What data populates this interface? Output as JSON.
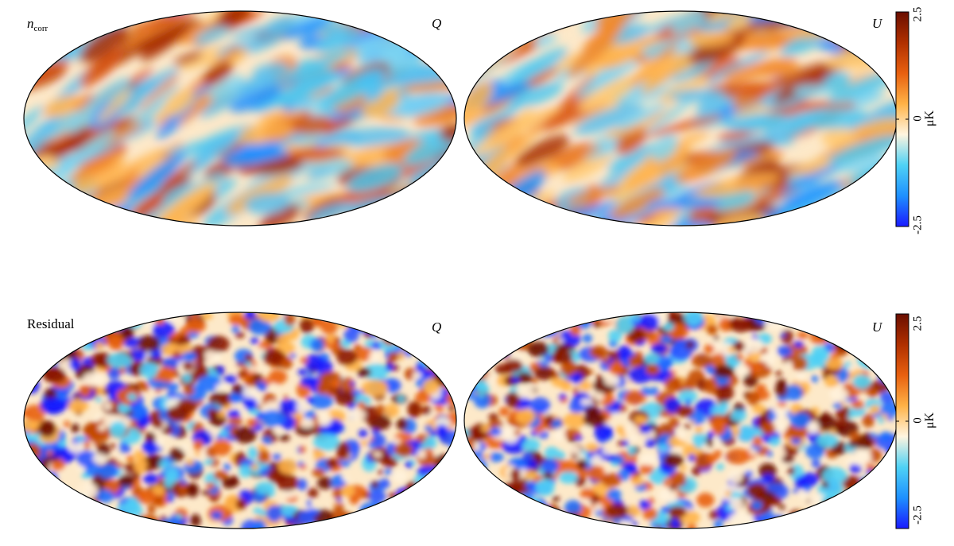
{
  "rows": [
    {
      "row_label_italic": "n",
      "row_label_sub": "corr",
      "row_label_plain": "",
      "maps": [
        {
          "stokes": "Q"
        },
        {
          "stokes": "U"
        }
      ],
      "colorbar": {
        "max": "2.5",
        "mid": "0",
        "min": "-2.5",
        "unit": "μK"
      }
    },
    {
      "row_label_italic": "",
      "row_label_sub": "",
      "row_label_plain": "Residual",
      "maps": [
        {
          "stokes": "Q"
        },
        {
          "stokes": "U"
        }
      ],
      "colorbar": {
        "max": "2.5",
        "mid": "0",
        "min": "-2.5",
        "unit": "μK"
      }
    }
  ],
  "colormap": {
    "range": [
      -2.5,
      2.5
    ],
    "stops": [
      "#1a1aff",
      "#1e90ff",
      "#4fd2f5",
      "#fff5e0",
      "#ffb347",
      "#e8600f",
      "#b03000",
      "#6a0e00"
    ]
  }
}
